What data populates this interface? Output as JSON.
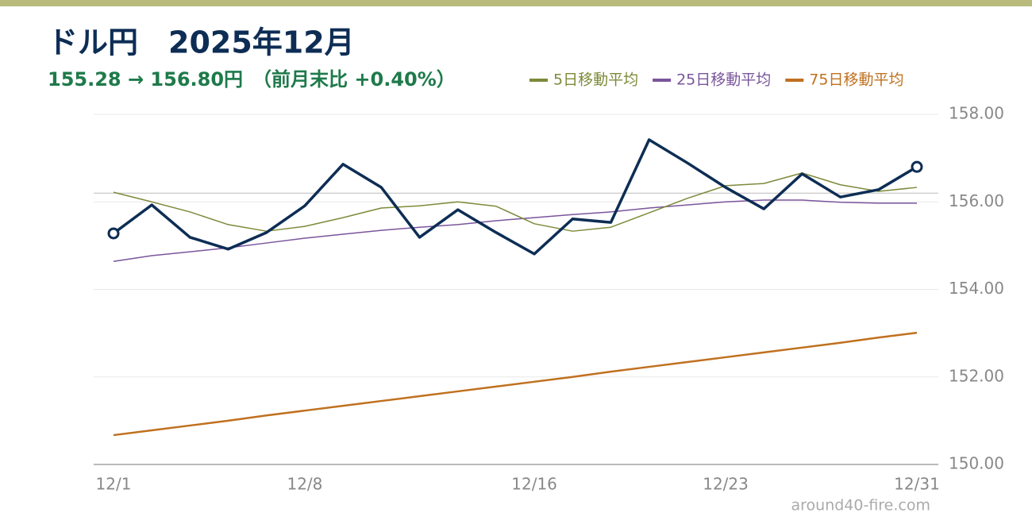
{
  "chart_data": {
    "type": "line",
    "title": "ドル円　2025年12月",
    "subtitle": "155.28 → 156.80円　（前月末比 +0.40%）",
    "source": "around40-fire.com",
    "categories": [
      "12/1",
      null,
      null,
      null,
      null,
      "12/8",
      null,
      null,
      null,
      null,
      null,
      "12/16",
      null,
      null,
      null,
      null,
      "12/23",
      null,
      null,
      null,
      null,
      "12/31"
    ],
    "series": [
      {
        "color": "#0d2d54",
        "values": [
          155.28,
          155.93,
          155.19,
          154.92,
          155.3,
          155.91,
          156.86,
          156.33,
          155.19,
          155.82,
          155.3,
          154.81,
          155.61,
          155.53,
          157.42,
          156.89,
          156.33,
          155.84,
          156.64,
          156.11,
          156.28,
          156.8
        ]
      },
      {
        "name": "5日移動平均",
        "color": "#7d8a3a",
        "values": [
          156.22,
          156.0,
          155.77,
          155.48,
          155.33,
          155.44,
          155.64,
          155.86,
          155.91,
          156.0,
          155.9,
          155.5,
          155.33,
          155.42,
          155.75,
          156.08,
          156.37,
          156.42,
          156.66,
          156.39,
          156.24,
          156.33
        ]
      },
      {
        "name": "25日移動平均",
        "color": "#7a559c",
        "values": [
          154.64,
          154.77,
          154.86,
          154.95,
          155.06,
          155.17,
          155.26,
          155.35,
          155.42,
          155.48,
          155.57,
          155.64,
          155.71,
          155.77,
          155.86,
          155.93,
          156.0,
          156.04,
          156.04,
          155.99,
          155.97,
          155.97
        ]
      },
      {
        "name": "75日移動平均",
        "color": "#c0701f",
        "values": [
          150.67,
          150.78,
          150.89,
          151.0,
          151.12,
          151.23,
          151.34,
          151.45,
          151.56,
          151.67,
          151.78,
          151.89,
          152.0,
          152.12,
          152.23,
          152.34,
          152.45,
          152.56,
          152.67,
          152.78,
          152.9,
          153.01
        ]
      }
    ],
    "reference_line": 156.2,
    "ylim": [
      150,
      158
    ],
    "yticks": [
      {
        "value": 150,
        "label": "150.00"
      },
      {
        "value": 152,
        "label": "152.00"
      },
      {
        "value": 154,
        "label": "154.00"
      },
      {
        "value": 156,
        "label": "156.00"
      },
      {
        "value": 158,
        "label": "158.00"
      }
    ],
    "grid": true
  }
}
